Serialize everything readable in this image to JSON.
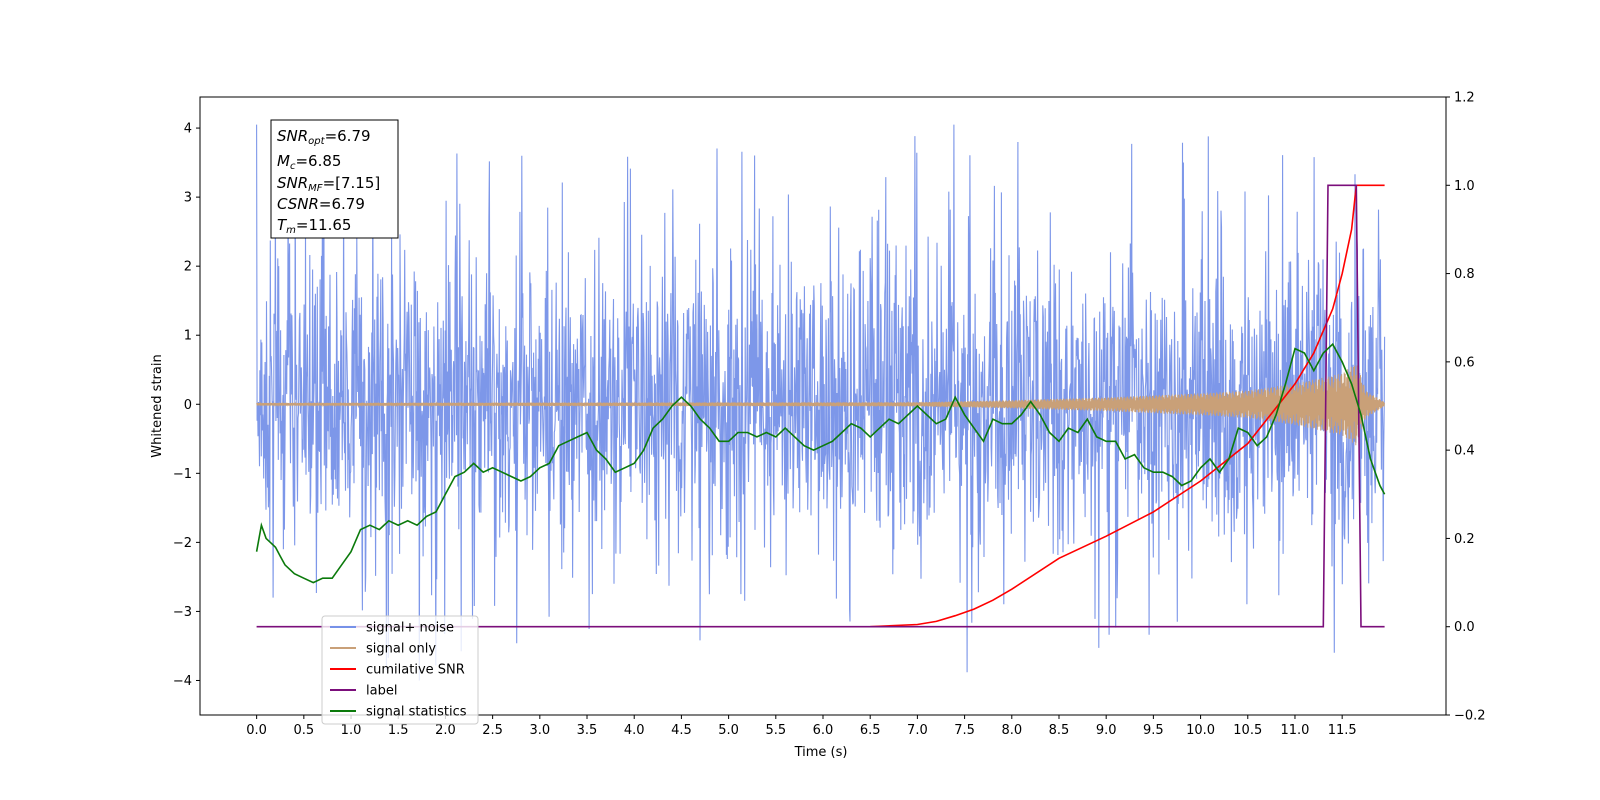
{
  "chart_data": {
    "type": "line",
    "xlabel": "Time (s)",
    "ylabel": "Whitened strain",
    "xlim": [
      -0.6,
      12.6
    ],
    "ylim": [
      -4.5,
      4.45
    ],
    "y2lim": [
      -0.2,
      1.2
    ],
    "grid": false,
    "legend_position": "lower-left",
    "x_ticks": [
      "0.0",
      "0.5",
      "1.0",
      "1.5",
      "2.0",
      "2.5",
      "3.0",
      "3.5",
      "4.0",
      "4.5",
      "5.0",
      "5.5",
      "6.0",
      "6.5",
      "7.0",
      "7.5",
      "8.0",
      "8.5",
      "9.0",
      "9.5",
      "10.0",
      "10.5",
      "11.0",
      "11.5"
    ],
    "y_ticks": [
      "−4",
      "−3",
      "−2",
      "−1",
      "0",
      "1",
      "2",
      "3",
      "4"
    ],
    "y2_ticks": [
      "−0.2",
      "0.0",
      "0.2",
      "0.4",
      "0.6",
      "0.8",
      "1.0",
      "1.2"
    ],
    "annotation": {
      "snr_opt": "6.79",
      "mc": "6.85",
      "snr_mf": "[7.15]",
      "csnr": "6.79",
      "tm": "11.65"
    },
    "series": [
      {
        "name": "signal+ noise",
        "color": "#7691e8",
        "axis": "left",
        "kind": "noise",
        "t_start": 0.0,
        "t_end": 11.95,
        "envelope": [
          1.5,
          2.9
        ],
        "extremes": [
          -4.0,
          4.05
        ]
      },
      {
        "name": "signal only",
        "color": "#c9a078",
        "axis": "left",
        "kind": "chirp",
        "t_start": 0.0,
        "t_end": 11.95,
        "amplitude_points": [
          [
            0,
            0.02
          ],
          [
            7.0,
            0.03
          ],
          [
            8.0,
            0.06
          ],
          [
            9.0,
            0.1
          ],
          [
            10.0,
            0.16
          ],
          [
            10.5,
            0.2
          ],
          [
            11.0,
            0.3
          ],
          [
            11.5,
            0.45
          ],
          [
            11.65,
            0.6
          ],
          [
            11.75,
            0.2
          ],
          [
            11.95,
            0.03
          ]
        ]
      },
      {
        "name": "cumilative SNR",
        "color": "#ff0000",
        "axis": "right",
        "x": [
          6.5,
          7.0,
          7.2,
          7.4,
          7.6,
          7.8,
          8.0,
          8.5,
          9.0,
          9.5,
          10.0,
          10.5,
          11.0,
          11.2,
          11.4,
          11.5,
          11.6,
          11.65,
          11.7,
          11.95
        ],
        "values": [
          0.0,
          0.005,
          0.012,
          0.025,
          0.04,
          0.06,
          0.085,
          0.155,
          0.205,
          0.26,
          0.33,
          0.415,
          0.55,
          0.62,
          0.72,
          0.8,
          0.9,
          1.0,
          1.0,
          1.0
        ]
      },
      {
        "name": "label",
        "color": "#7b0e7b",
        "axis": "right",
        "x": [
          0.0,
          11.3,
          11.35,
          11.65,
          11.7,
          11.95
        ],
        "values": [
          0,
          0,
          1,
          1,
          0,
          0
        ]
      },
      {
        "name": "signal statistics",
        "color": "#0b7a0b",
        "axis": "right",
        "x": [
          0.0,
          0.05,
          0.1,
          0.15,
          0.2,
          0.25,
          0.3,
          0.4,
          0.5,
          0.6,
          0.7,
          0.8,
          0.9,
          1.0,
          1.1,
          1.2,
          1.3,
          1.4,
          1.5,
          1.6,
          1.7,
          1.8,
          1.9,
          2.0,
          2.1,
          2.2,
          2.3,
          2.4,
          2.5,
          2.6,
          2.7,
          2.8,
          2.9,
          3.0,
          3.1,
          3.2,
          3.3,
          3.4,
          3.5,
          3.6,
          3.7,
          3.8,
          3.9,
          4.0,
          4.1,
          4.2,
          4.3,
          4.4,
          4.5,
          4.6,
          4.7,
          4.8,
          4.9,
          5.0,
          5.1,
          5.2,
          5.3,
          5.4,
          5.5,
          5.6,
          5.7,
          5.8,
          5.9,
          6.0,
          6.1,
          6.2,
          6.3,
          6.4,
          6.5,
          6.6,
          6.7,
          6.8,
          6.9,
          7.0,
          7.1,
          7.2,
          7.3,
          7.4,
          7.5,
          7.6,
          7.7,
          7.8,
          7.9,
          8.0,
          8.1,
          8.2,
          8.3,
          8.4,
          8.5,
          8.6,
          8.7,
          8.8,
          8.9,
          9.0,
          9.1,
          9.2,
          9.3,
          9.4,
          9.5,
          9.6,
          9.7,
          9.8,
          9.9,
          10.0,
          10.1,
          10.2,
          10.3,
          10.4,
          10.5,
          10.6,
          10.7,
          10.8,
          10.9,
          11.0,
          11.1,
          11.2,
          11.3,
          11.4,
          11.5,
          11.6,
          11.7,
          11.8,
          11.9,
          11.95
        ],
        "values": [
          0.17,
          0.23,
          0.2,
          0.19,
          0.18,
          0.16,
          0.14,
          0.12,
          0.11,
          0.1,
          0.11,
          0.11,
          0.14,
          0.17,
          0.22,
          0.23,
          0.22,
          0.24,
          0.23,
          0.24,
          0.23,
          0.25,
          0.26,
          0.3,
          0.34,
          0.35,
          0.37,
          0.35,
          0.36,
          0.35,
          0.34,
          0.33,
          0.34,
          0.36,
          0.37,
          0.41,
          0.42,
          0.43,
          0.44,
          0.4,
          0.38,
          0.35,
          0.36,
          0.37,
          0.4,
          0.45,
          0.47,
          0.5,
          0.52,
          0.5,
          0.47,
          0.45,
          0.42,
          0.42,
          0.44,
          0.44,
          0.43,
          0.44,
          0.43,
          0.45,
          0.43,
          0.41,
          0.4,
          0.41,
          0.42,
          0.44,
          0.46,
          0.45,
          0.43,
          0.45,
          0.47,
          0.46,
          0.48,
          0.5,
          0.48,
          0.46,
          0.47,
          0.52,
          0.48,
          0.45,
          0.42,
          0.47,
          0.46,
          0.46,
          0.48,
          0.51,
          0.48,
          0.44,
          0.42,
          0.45,
          0.44,
          0.47,
          0.43,
          0.42,
          0.42,
          0.38,
          0.39,
          0.36,
          0.35,
          0.35,
          0.34,
          0.32,
          0.33,
          0.36,
          0.38,
          0.35,
          0.38,
          0.45,
          0.44,
          0.41,
          0.43,
          0.48,
          0.55,
          0.63,
          0.62,
          0.58,
          0.62,
          0.64,
          0.6,
          0.55,
          0.48,
          0.38,
          0.32,
          0.3
        ]
      }
    ]
  }
}
